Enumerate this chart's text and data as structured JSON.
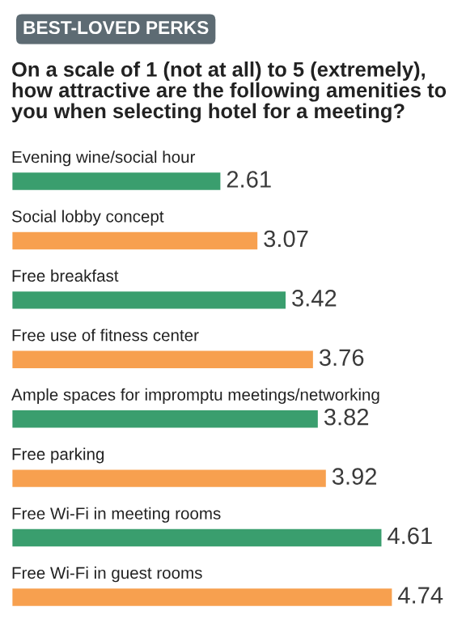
{
  "chart_data": {
    "type": "bar",
    "orientation": "horizontal",
    "title": "BEST-LOVED PERKS",
    "subtitle": "On a scale of 1 (not at all) to 5 (extremely), how attractive are the following amenities to you when selecting hotel for a meeting?",
    "categories": [
      "Evening wine/social hour",
      "Social lobby concept",
      "Free breakfast",
      "Free use of fitness center",
      "Ample spaces for impromptu meetings/networking",
      "Free parking",
      "Free Wi-Fi in meeting rooms",
      "Free Wi-Fi in guest rooms"
    ],
    "values": [
      2.61,
      3.07,
      3.42,
      3.76,
      3.82,
      3.92,
      4.61,
      4.74
    ],
    "colors": [
      "#3a9e6e",
      "#f7a04f",
      "#3a9e6e",
      "#f7a04f",
      "#3a9e6e",
      "#f7a04f",
      "#3a9e6e",
      "#f7a04f"
    ],
    "data_labels": true
  }
}
